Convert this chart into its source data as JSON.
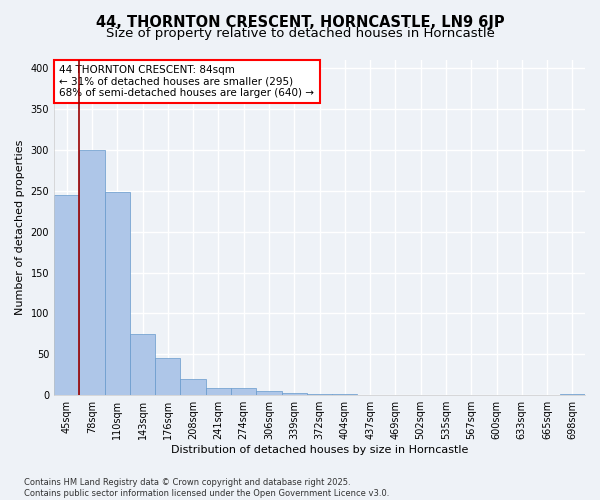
{
  "title": "44, THORNTON CRESCENT, HORNCASTLE, LN9 6JP",
  "subtitle": "Size of property relative to detached houses in Horncastle",
  "xlabel": "Distribution of detached houses by size in Horncastle",
  "ylabel": "Number of detached properties",
  "categories": [
    "45sqm",
    "78sqm",
    "110sqm",
    "143sqm",
    "176sqm",
    "208sqm",
    "241sqm",
    "274sqm",
    "306sqm",
    "339sqm",
    "372sqm",
    "404sqm",
    "437sqm",
    "469sqm",
    "502sqm",
    "535sqm",
    "567sqm",
    "600sqm",
    "633sqm",
    "665sqm",
    "698sqm"
  ],
  "values": [
    245,
    300,
    248,
    75,
    46,
    20,
    9,
    9,
    5,
    3,
    1,
    1,
    0,
    0,
    0,
    0,
    0,
    0,
    0,
    0,
    2
  ],
  "bar_color": "#aec6e8",
  "bar_edge_color": "#6699cc",
  "vline_x": 0.5,
  "vline_color": "#990000",
  "annotation_text": "44 THORNTON CRESCENT: 84sqm\n← 31% of detached houses are smaller (295)\n68% of semi-detached houses are larger (640) →",
  "ylim": [
    0,
    410
  ],
  "yticks": [
    0,
    50,
    100,
    150,
    200,
    250,
    300,
    350,
    400
  ],
  "background_color": "#eef2f7",
  "grid_color": "#ffffff",
  "footer_text": "Contains HM Land Registry data © Crown copyright and database right 2025.\nContains public sector information licensed under the Open Government Licence v3.0.",
  "title_fontsize": 10.5,
  "subtitle_fontsize": 9.5,
  "axis_label_fontsize": 8,
  "tick_fontsize": 7,
  "annotation_fontsize": 7.5,
  "footer_fontsize": 6
}
